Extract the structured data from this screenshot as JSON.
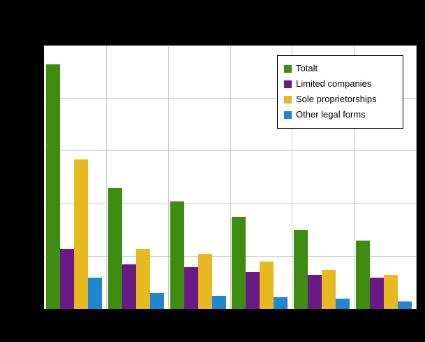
{
  "chart_data": {
    "type": "bar",
    "categories": [
      "",
      "",
      "",
      "",
      "",
      ""
    ],
    "series": [
      {
        "name": "Totalt",
        "color": "#3e8c10",
        "values": [
          93,
          46,
          41,
          35,
          30,
          26
        ]
      },
      {
        "name": "Limited companies",
        "color": "#6a1a86",
        "values": [
          23,
          17,
          16,
          14,
          13,
          12
        ]
      },
      {
        "name": "Sole proprietorships",
        "color": "#e7b820",
        "values": [
          57,
          23,
          21,
          18,
          15,
          13
        ]
      },
      {
        "name": "Other legal forms",
        "color": "#1f86d2",
        "values": [
          12,
          6,
          5,
          4.5,
          4,
          3
        ]
      }
    ],
    "title": "",
    "xlabel": "",
    "ylabel": "",
    "ylim": [
      0,
      100
    ],
    "grid": true,
    "gridline_interval": 20,
    "legend_position": "top-right",
    "group_count": 6
  },
  "legend": {
    "items": [
      "Totalt",
      "Limited companies",
      "Sole proprietorships",
      "Other legal forms"
    ]
  },
  "colors": {
    "background": "#000000",
    "plot_background": "#ffffff",
    "gridline": "#c8c8c8",
    "axis": "#000000"
  }
}
